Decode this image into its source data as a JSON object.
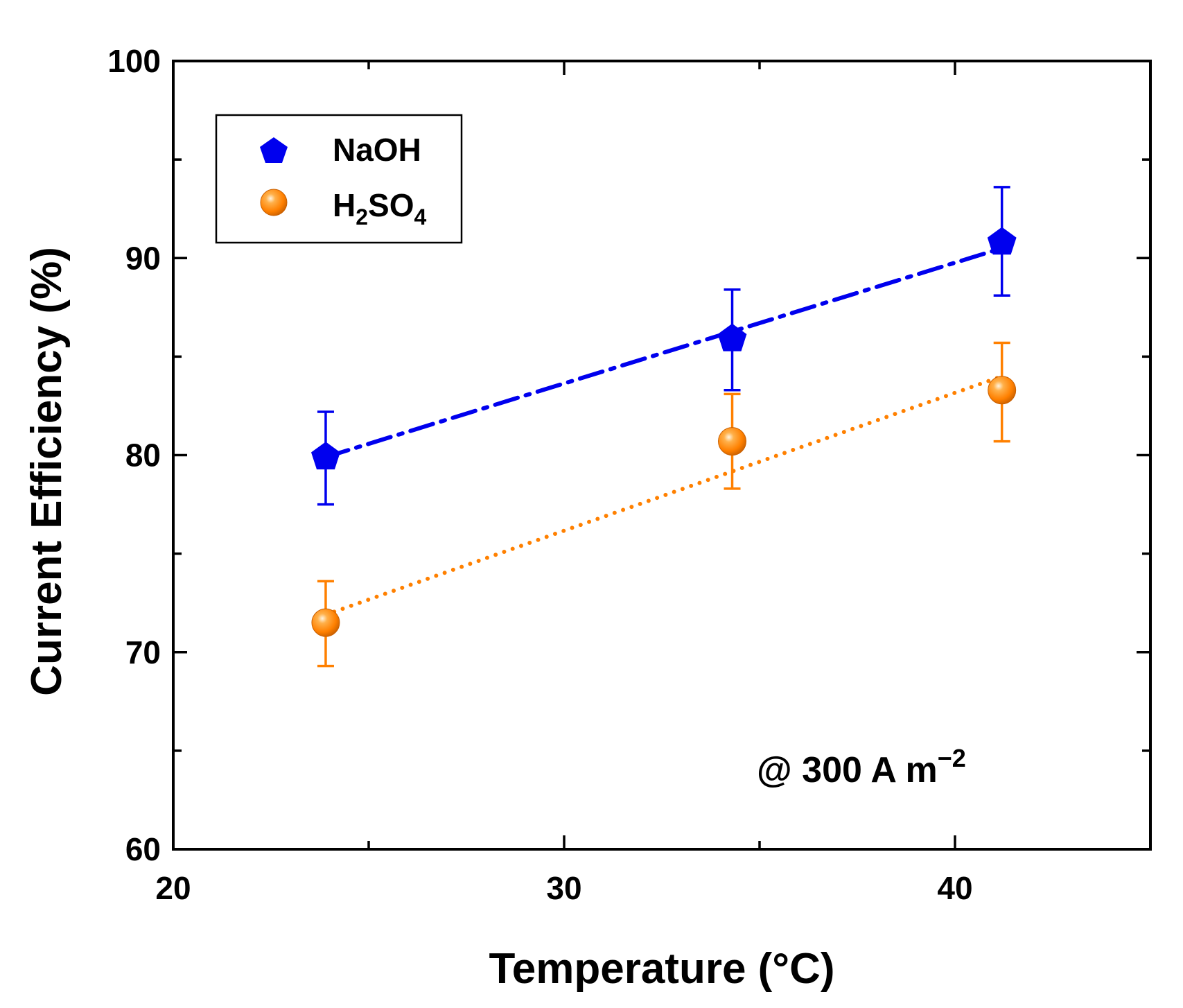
{
  "chart_data": {
    "type": "scatter",
    "xlabel": "Temperature (°C)",
    "ylabel": "Current Efficiency (%)",
    "xlim": [
      20,
      45
    ],
    "ylim": [
      60,
      100
    ],
    "xticks": [
      20,
      30,
      40
    ],
    "yticks": [
      60,
      70,
      80,
      90,
      100
    ],
    "xtick_labels": [
      "20",
      "30",
      "40"
    ],
    "ytick_labels": [
      "60",
      "70",
      "80",
      "90",
      "100"
    ],
    "annotation": {
      "prefix": "@ 300 A m",
      "superscript": "−2"
    },
    "series": [
      {
        "name": "NaOH",
        "legend_label": {
          "main": "NaOH"
        },
        "color": "#0000ee",
        "marker": "pentagon",
        "line_style": "dash-dot",
        "x": [
          23.9,
          34.3,
          41.2
        ],
        "y": [
          79.9,
          85.9,
          90.8
        ],
        "err_low": [
          77.5,
          83.3,
          88.1
        ],
        "err_high": [
          82.2,
          88.4,
          93.6
        ],
        "fit": {
          "x": [
            23.9,
            41.2
          ],
          "y": [
            79.9,
            90.5
          ]
        }
      },
      {
        "name": "H2SO4",
        "legend_label": {
          "p1": "H",
          "s1": "2",
          "p2": "SO",
          "s2": "4"
        },
        "color": "#ff8000",
        "marker": "sphere",
        "line_style": "dotted",
        "x": [
          23.9,
          34.3,
          41.2
        ],
        "y": [
          71.5,
          80.7,
          83.3
        ],
        "err_low": [
          69.3,
          78.3,
          80.7
        ],
        "err_high": [
          73.6,
          83.1,
          85.7
        ],
        "fit": {
          "x": [
            23.9,
            41.2
          ],
          "y": [
            71.9,
            84.0
          ]
        }
      }
    ],
    "legend_position": "top-left"
  }
}
